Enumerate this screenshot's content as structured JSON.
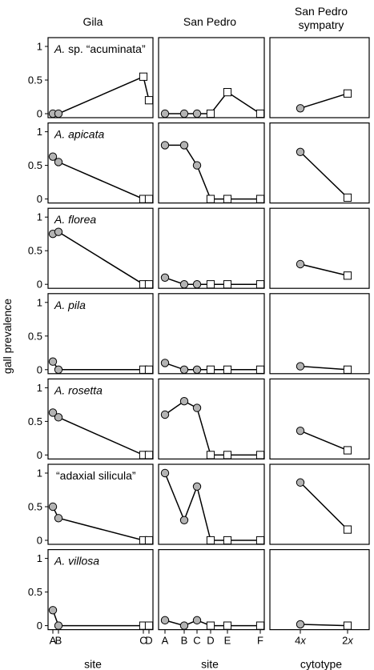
{
  "chart_data": {
    "type": "scatter",
    "ylabel": "gall prevalence",
    "ylim": [
      0,
      1
    ],
    "yticks": [
      "0",
      "0.5",
      "1"
    ],
    "grid": false,
    "legend": "none",
    "markers": {
      "diploid_2x": "open-square",
      "tetraploid_4x": "filled-gray-circle"
    },
    "colors": {
      "circle_fill": "#b3b3b3",
      "square_fill": "#ffffff",
      "stroke": "#000000"
    },
    "columns": [
      {
        "key": "gila",
        "title_lines": [
          "Gila"
        ],
        "xlabel": "site",
        "x_sites": [
          "A",
          "B",
          "C",
          "D"
        ]
      },
      {
        "key": "sanpedro",
        "title_lines": [
          "San Pedro"
        ],
        "xlabel": "site",
        "x_sites": [
          "A",
          "B",
          "C",
          "D",
          "E",
          "F"
        ]
      },
      {
        "key": "sympatry",
        "title_lines": [
          "San Pedro",
          "sympatry"
        ],
        "xlabel": "cytotype",
        "x_sites": [
          "4x",
          "2x"
        ]
      }
    ],
    "rows": [
      {
        "label_italic": "A.",
        "label_rest": " sp. “acuminata”",
        "gila": {
          "circles": [
            [
              "A",
              0
            ],
            [
              "B",
              0
            ]
          ],
          "squares": [
            [
              "C",
              0.55
            ],
            [
              "D",
              0.2
            ]
          ]
        },
        "sanpedro": {
          "circles": [
            [
              "A",
              0
            ],
            [
              "B",
              0
            ],
            [
              "C",
              0
            ]
          ],
          "squares": [
            [
              "D",
              0
            ],
            [
              "E",
              0.32
            ],
            [
              "F",
              0
            ]
          ]
        },
        "sympatry": {
          "circles": [
            [
              "4x",
              0.08
            ]
          ],
          "squares": [
            [
              "2x",
              0.3
            ]
          ]
        }
      },
      {
        "label_italic": "A. apicata",
        "label_rest": "",
        "gila": {
          "circles": [
            [
              "A",
              0.63
            ],
            [
              "B",
              0.55
            ]
          ],
          "squares": [
            [
              "C",
              0
            ],
            [
              "D",
              0
            ]
          ]
        },
        "sanpedro": {
          "circles": [
            [
              "A",
              0.8
            ],
            [
              "B",
              0.8
            ],
            [
              "C",
              0.5
            ]
          ],
          "squares": [
            [
              "D",
              0
            ],
            [
              "E",
              0
            ],
            [
              "F",
              0
            ]
          ]
        },
        "sympatry": {
          "circles": [
            [
              "4x",
              0.7
            ]
          ],
          "squares": [
            [
              "2x",
              0.02
            ]
          ]
        }
      },
      {
        "label_italic": "A. florea",
        "label_rest": "",
        "gila": {
          "circles": [
            [
              "A",
              0.75
            ],
            [
              "B",
              0.78
            ]
          ],
          "squares": [
            [
              "C",
              0
            ],
            [
              "D",
              0
            ]
          ]
        },
        "sanpedro": {
          "circles": [
            [
              "A",
              0.1
            ],
            [
              "B",
              0
            ],
            [
              "C",
              0
            ]
          ],
          "squares": [
            [
              "D",
              0
            ],
            [
              "E",
              0
            ],
            [
              "F",
              0
            ]
          ]
        },
        "sympatry": {
          "circles": [
            [
              "4x",
              0.3
            ]
          ],
          "squares": [
            [
              "2x",
              0.13
            ]
          ]
        }
      },
      {
        "label_italic": "A. pila",
        "label_rest": "",
        "gila": {
          "circles": [
            [
              "A",
              0.12
            ],
            [
              "B",
              0
            ]
          ],
          "squares": [
            [
              "C",
              0
            ],
            [
              "D",
              0
            ]
          ]
        },
        "sanpedro": {
          "circles": [
            [
              "A",
              0.1
            ],
            [
              "B",
              0
            ],
            [
              "C",
              0
            ]
          ],
          "squares": [
            [
              "D",
              0
            ],
            [
              "E",
              0
            ],
            [
              "F",
              0
            ]
          ]
        },
        "sympatry": {
          "circles": [
            [
              "4x",
              0.05
            ]
          ],
          "squares": [
            [
              "2x",
              0
            ]
          ]
        }
      },
      {
        "label_italic": "A. rosetta",
        "label_rest": "",
        "gila": {
          "circles": [
            [
              "A",
              0.63
            ],
            [
              "B",
              0.56
            ]
          ],
          "squares": [
            [
              "C",
              0
            ],
            [
              "D",
              0
            ]
          ]
        },
        "sanpedro": {
          "circles": [
            [
              "A",
              0.6
            ],
            [
              "B",
              0.8
            ],
            [
              "C",
              0.7
            ]
          ],
          "squares": [
            [
              "D",
              0
            ],
            [
              "E",
              0
            ],
            [
              "F",
              0
            ]
          ]
        },
        "sympatry": {
          "circles": [
            [
              "4x",
              0.36
            ]
          ],
          "squares": [
            [
              "2x",
              0.07
            ]
          ]
        }
      },
      {
        "label_italic": "",
        "label_rest": "“adaxial silicula”",
        "gila": {
          "circles": [
            [
              "A",
              0.5
            ],
            [
              "B",
              0.33
            ]
          ],
          "squares": [
            [
              "C",
              0
            ],
            [
              "D",
              0
            ]
          ]
        },
        "sanpedro": {
          "circles": [
            [
              "A",
              1.0
            ],
            [
              "B",
              0.3
            ],
            [
              "C",
              0.8
            ]
          ],
          "squares": [
            [
              "D",
              0
            ],
            [
              "E",
              0
            ],
            [
              "F",
              0
            ]
          ]
        },
        "sympatry": {
          "circles": [
            [
              "4x",
              0.86
            ]
          ],
          "squares": [
            [
              "2x",
              0.16
            ]
          ]
        }
      },
      {
        "label_italic": "A. villosa",
        "label_rest": "",
        "gila": {
          "circles": [
            [
              "A",
              0.23
            ],
            [
              "B",
              0
            ]
          ],
          "squares": [
            [
              "C",
              0
            ],
            [
              "D",
              0
            ]
          ]
        },
        "sanpedro": {
          "circles": [
            [
              "A",
              0.08
            ],
            [
              "B",
              0
            ],
            [
              "C",
              0.08
            ]
          ],
          "squares": [
            [
              "D",
              0
            ],
            [
              "E",
              0
            ],
            [
              "F",
              0
            ]
          ]
        },
        "sympatry": {
          "circles": [
            [
              "4x",
              0.02
            ]
          ],
          "squares": [
            [
              "2x",
              0
            ]
          ]
        }
      }
    ]
  }
}
